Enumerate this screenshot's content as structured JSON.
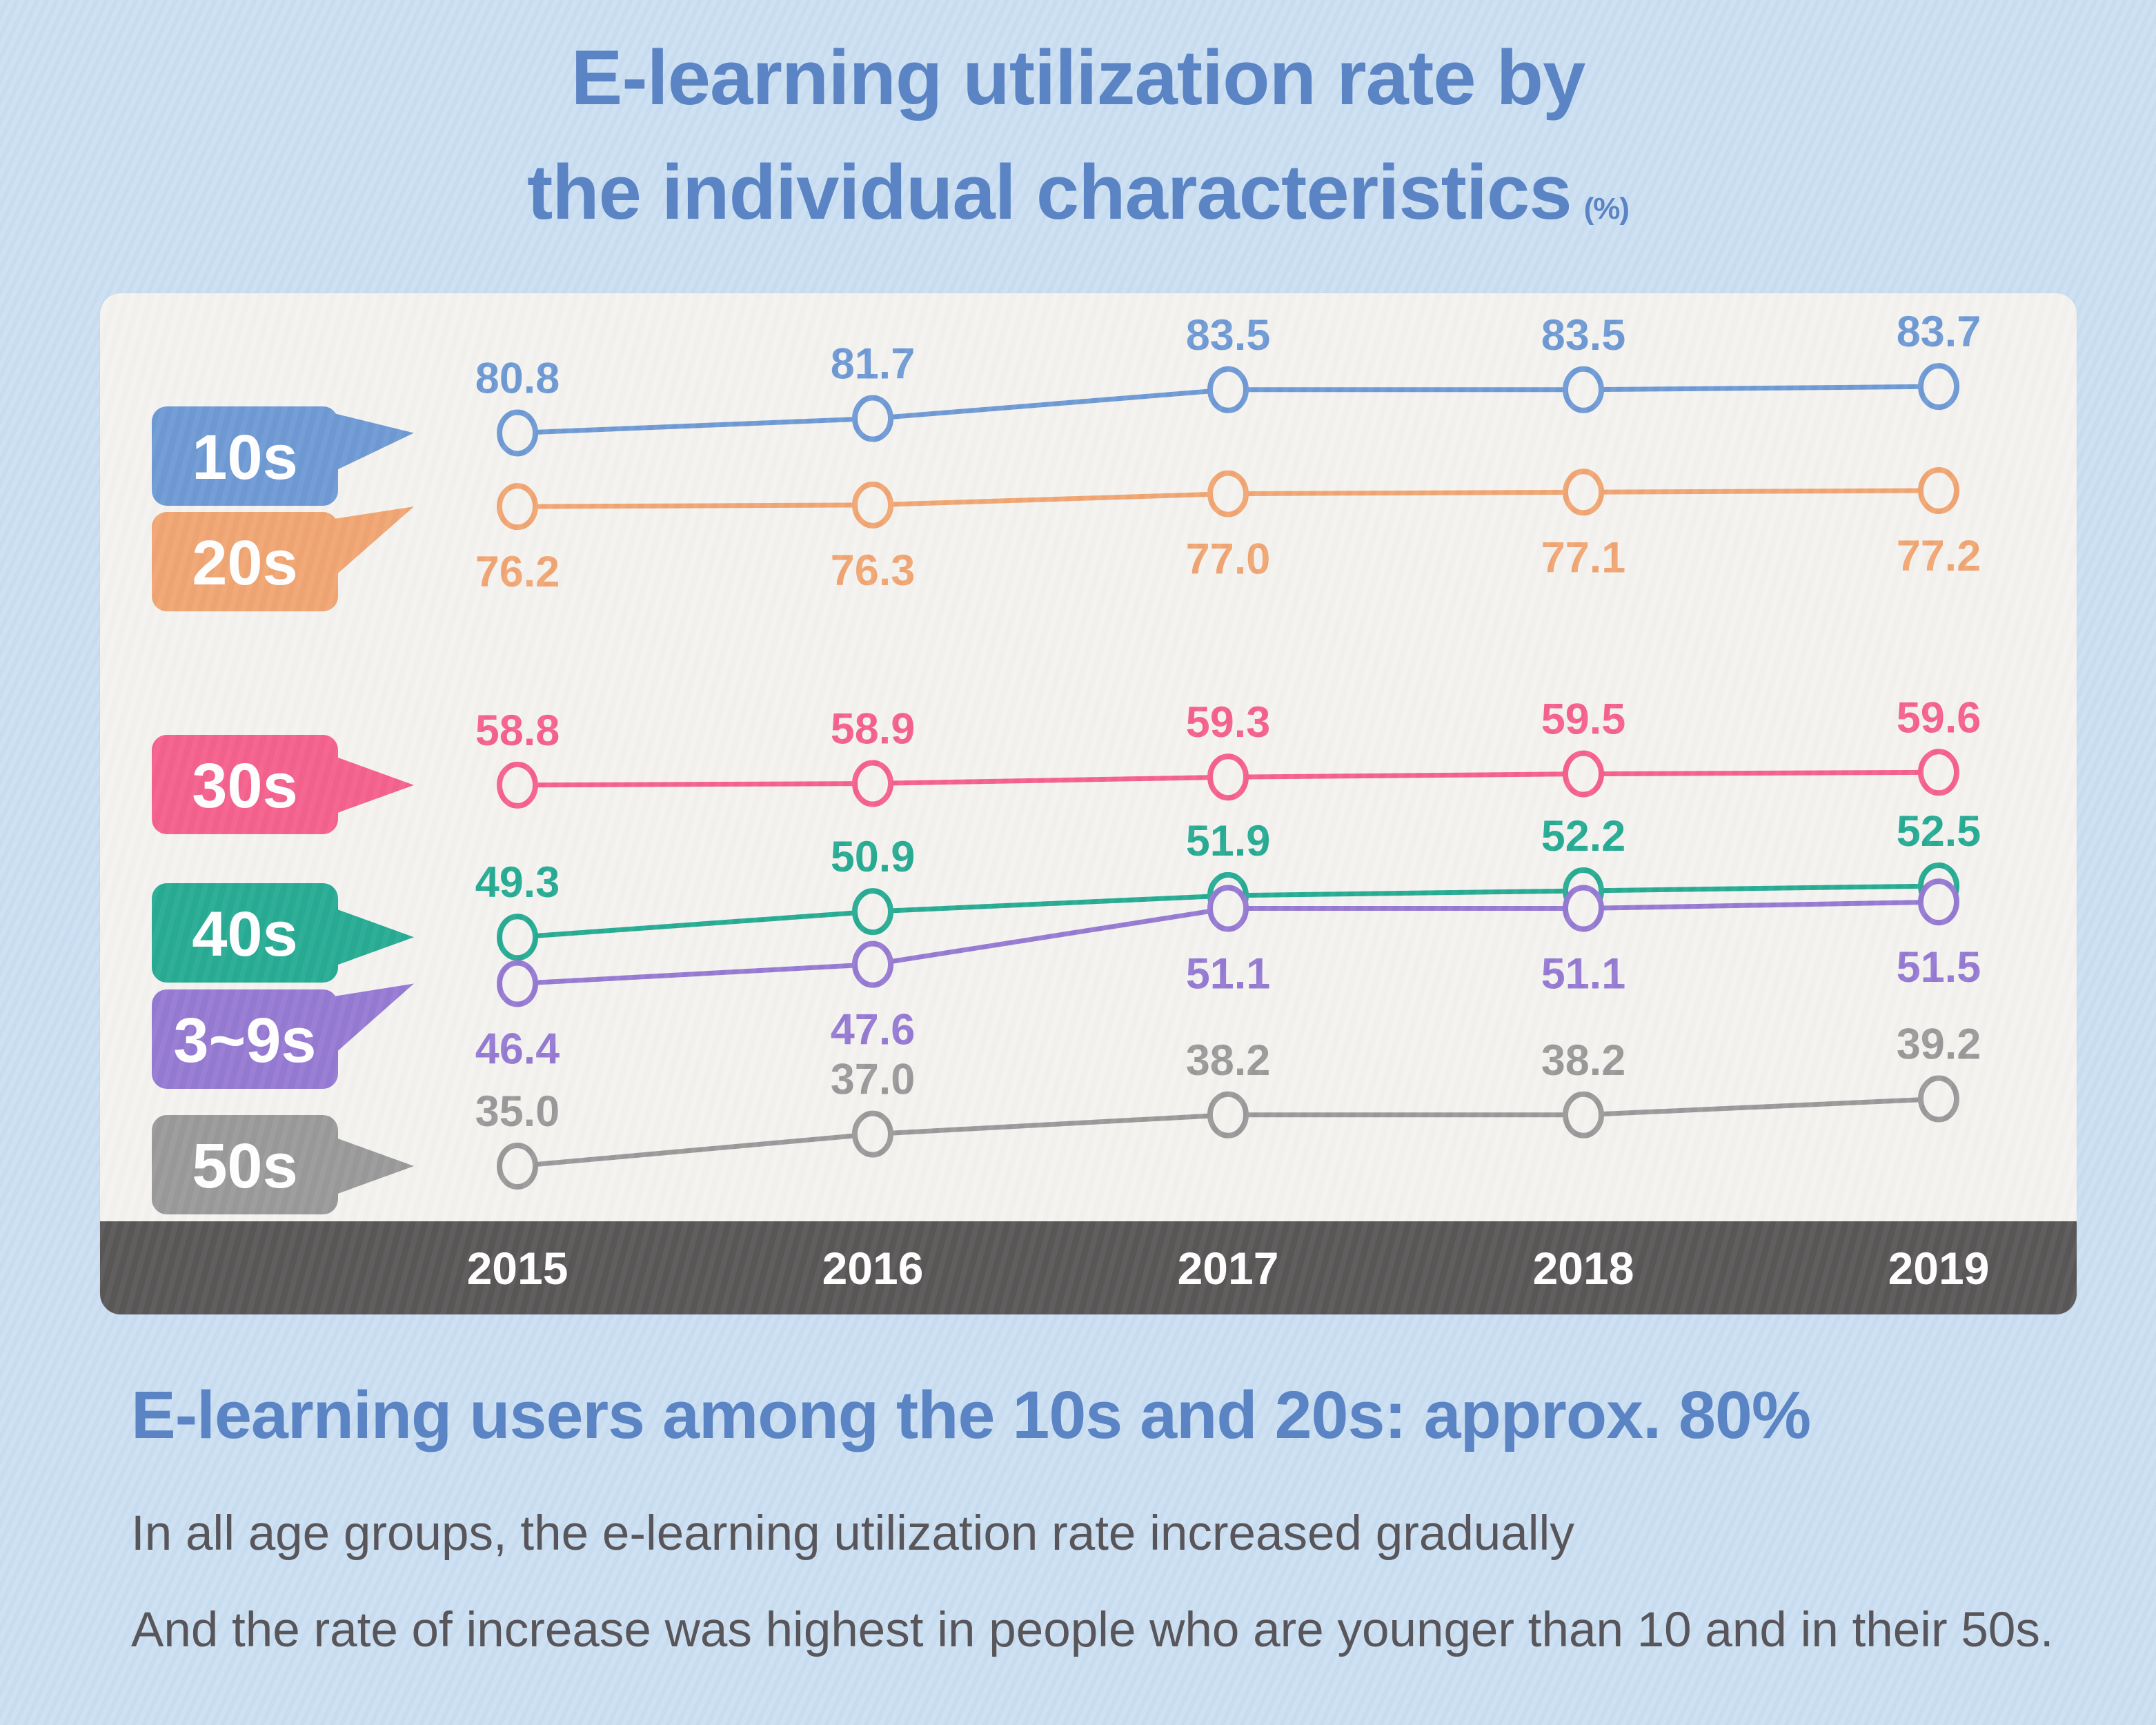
{
  "header": {
    "title_line1": "E-learning utilization rate by",
    "title_line2": "the individual characteristics",
    "unit": "(%)"
  },
  "chart_data": {
    "type": "line",
    "title": "E-learning utilization rate by the individual characteristics",
    "unit": "%",
    "categories": [
      "2015",
      "2016",
      "2017",
      "2018",
      "2019"
    ],
    "grid": false,
    "legend_position": "left-tags",
    "paper_color": "#f4f3f0",
    "axis_band_color": "#5a5757",
    "axis_text_color": "#ffffff",
    "point_fill": "#f4f3f0",
    "series": [
      {
        "name": "10s",
        "color": "#6f9ad5",
        "label_position": "above",
        "values": [
          80.8,
          81.7,
          83.5,
          83.5,
          83.7
        ]
      },
      {
        "name": "20s",
        "color": "#f1a673",
        "label_position": "below",
        "values": [
          76.2,
          76.3,
          77.0,
          77.1,
          77.2
        ]
      },
      {
        "name": "30s",
        "color": "#f5618e",
        "label_position": "above",
        "values": [
          58.8,
          58.9,
          59.3,
          59.5,
          59.6
        ]
      },
      {
        "name": "40s",
        "color": "#27ab94",
        "label_position": "above",
        "values": [
          49.3,
          50.9,
          51.9,
          52.2,
          52.5
        ]
      },
      {
        "name": "3~9s",
        "color": "#967ad2",
        "label_position": "below",
        "values": [
          46.4,
          47.6,
          51.1,
          51.1,
          51.5
        ]
      },
      {
        "name": "50s",
        "color": "#9b9a9b",
        "label_position": "above",
        "values": [
          35.0,
          37.0,
          38.2,
          38.2,
          39.2
        ]
      }
    ]
  },
  "footer": {
    "headline": "E-learning users among the 10s and 20s: approx. 80%",
    "line1": "In all age groups, the e-learning utilization rate increased gradually",
    "line2": "And the rate of increase was highest in people who are younger than 10 and in their 50s."
  }
}
